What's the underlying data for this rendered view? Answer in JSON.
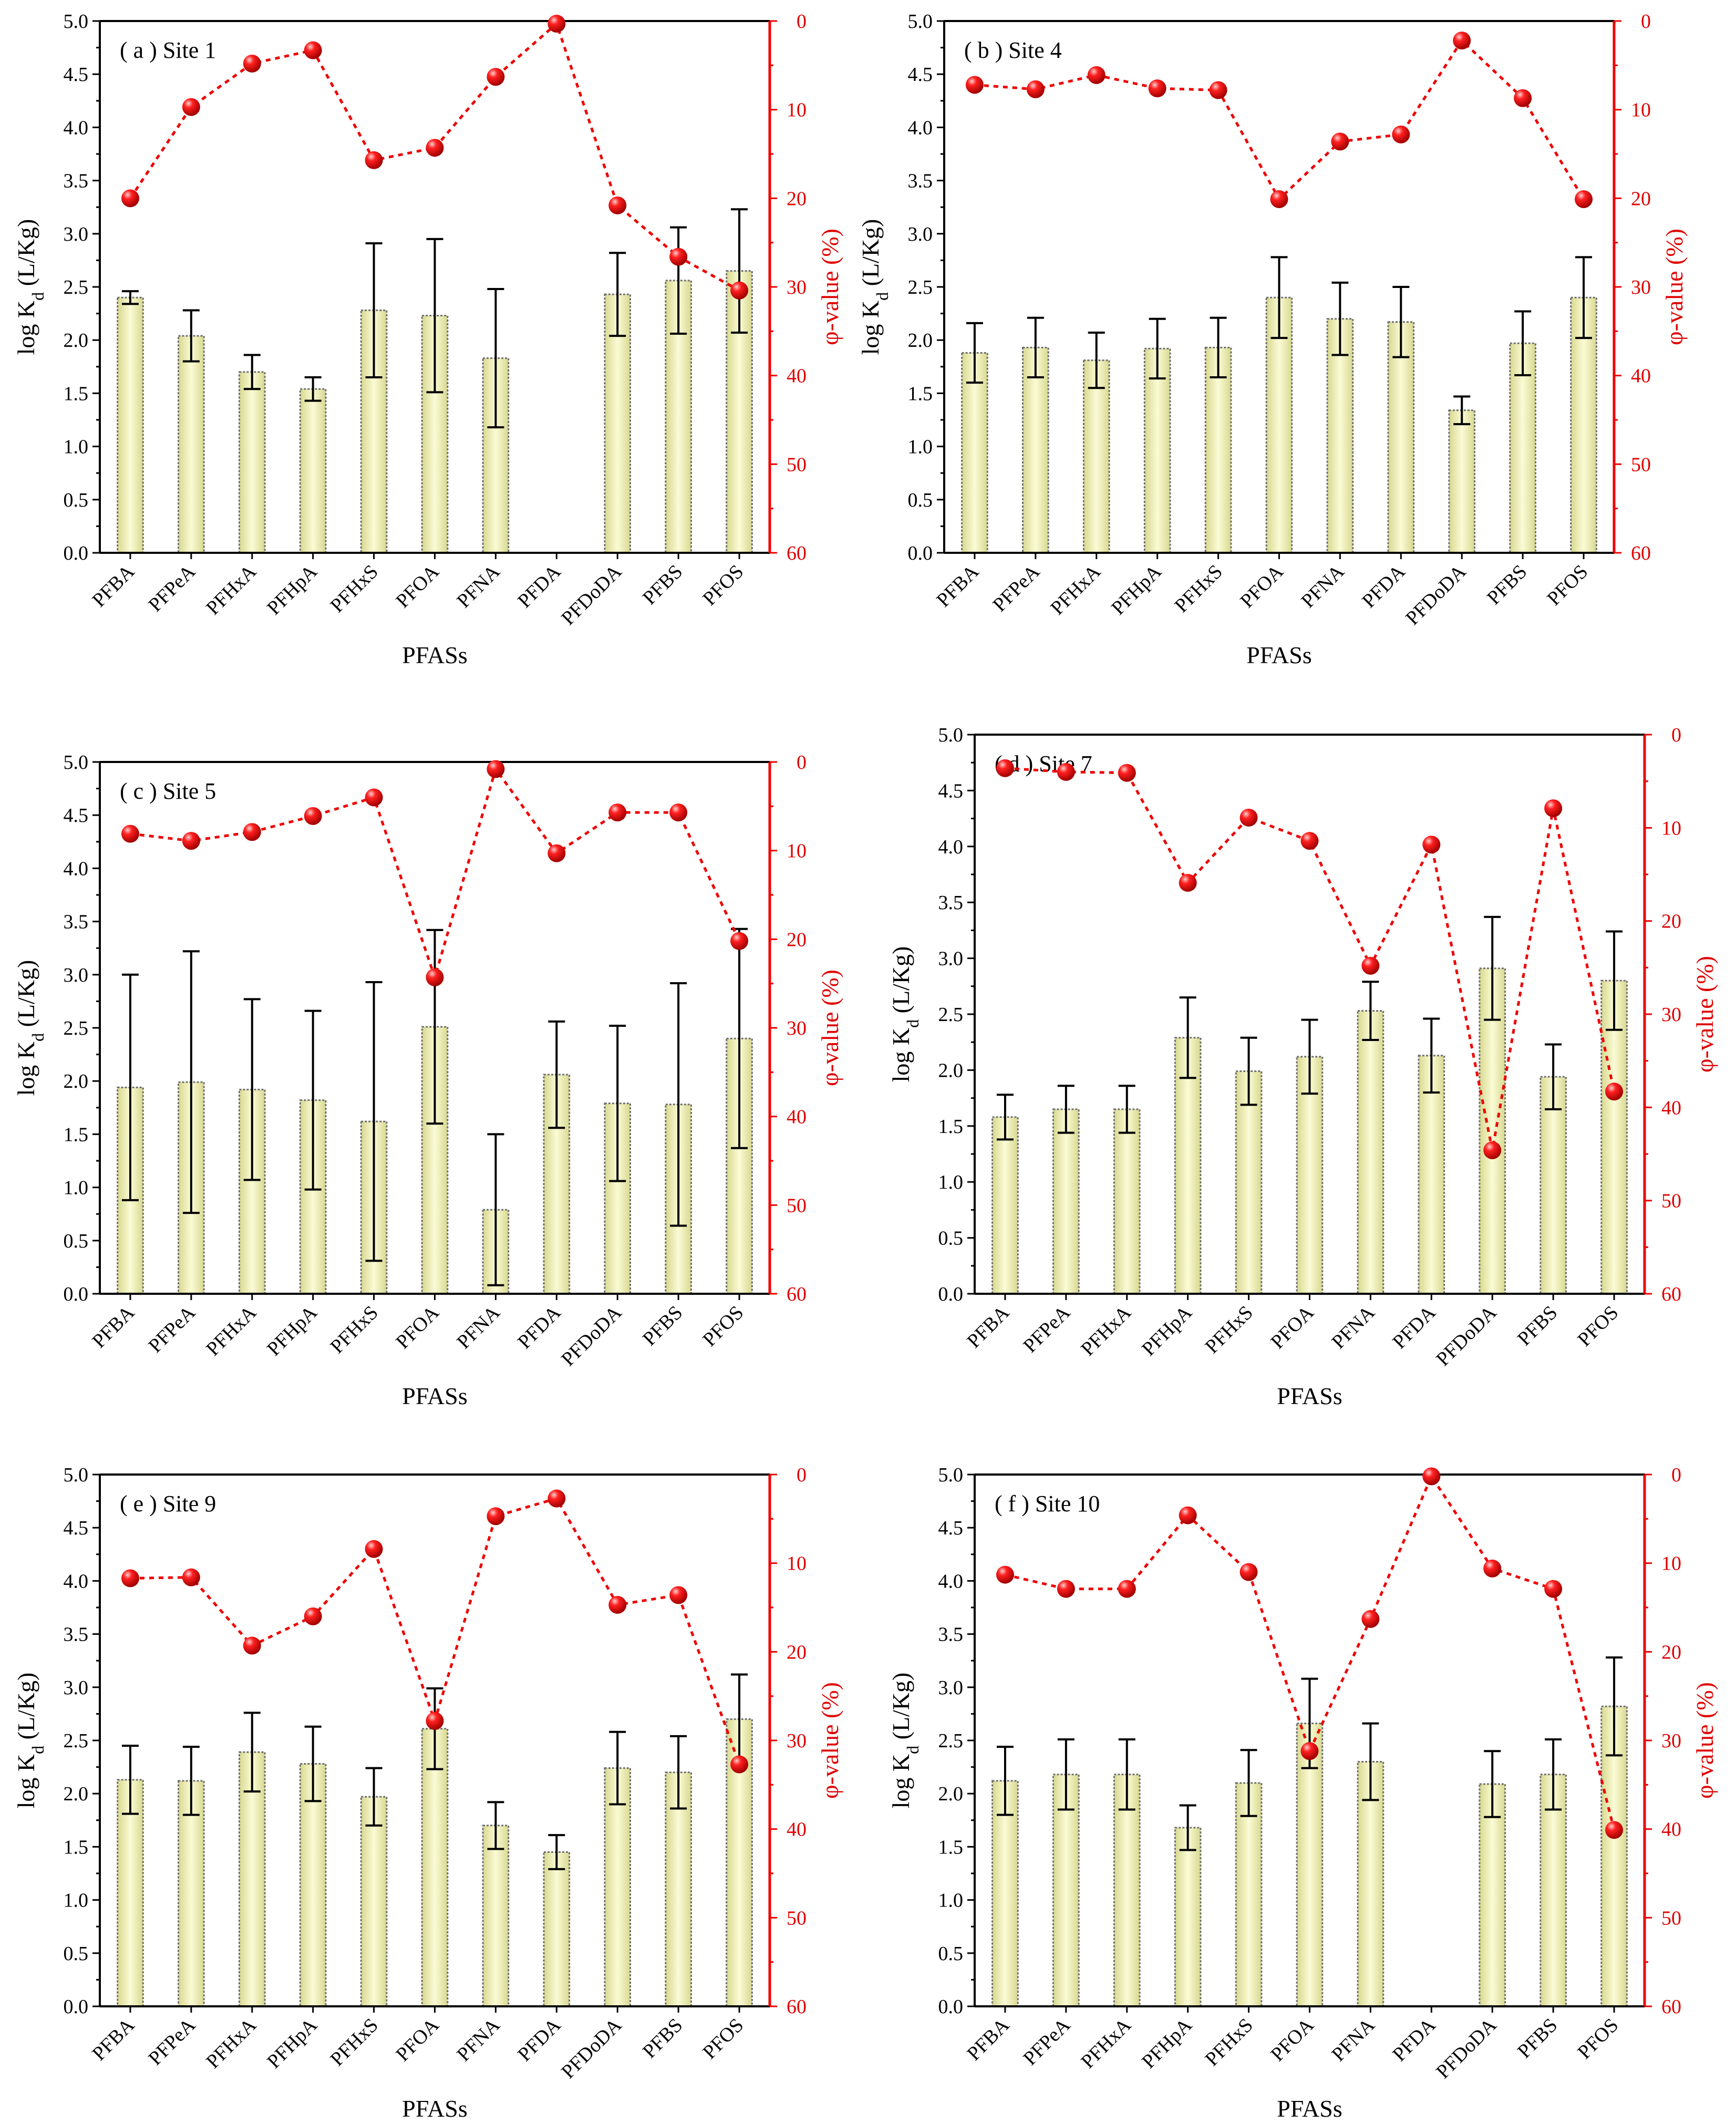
{
  "colors": {
    "bar_fill": "#f2f2a6",
    "bar_edge": "#6e6e6e",
    "axis": "#000000",
    "phi": "#ee0000"
  },
  "chart_data": [
    {
      "type": "bar",
      "title": "( a ) Site 1",
      "categories": [
        "PFBA",
        "PFPeA",
        "PFHxA",
        "PFHpA",
        "PFHxS",
        "PFOA",
        "PFNA",
        "PFDA",
        "PFDoDA",
        "PFBS",
        "PFOS"
      ],
      "xlabel": "PFASs",
      "ylabel": "log K_d (L/Kg)",
      "y2label": "φ-value (%)",
      "ylim": [
        0,
        5
      ],
      "y2lim": [
        60,
        0
      ],
      "yticks": [
        "0.0",
        "0.5",
        "1.0",
        "1.5",
        "2.0",
        "2.5",
        "3.0",
        "3.5",
        "4.0",
        "4.5",
        "5.0"
      ],
      "y2ticks": [
        "0",
        "10",
        "20",
        "30",
        "40",
        "50",
        "60"
      ],
      "series": [
        {
          "name": "log Kd",
          "values": [
            2.4,
            2.04,
            1.7,
            1.54,
            2.28,
            2.23,
            1.83,
            null,
            2.43,
            2.56,
            2.65
          ],
          "errors": [
            0.06,
            0.24,
            0.16,
            0.11,
            0.63,
            0.72,
            0.65,
            null,
            0.39,
            0.5,
            0.58
          ]
        },
        {
          "name": "φ-value",
          "values": [
            20,
            9.7,
            4.8,
            3.3,
            15.7,
            14.3,
            6.3,
            0.3,
            20.8,
            26.6,
            30.4
          ]
        }
      ]
    },
    {
      "type": "bar",
      "title": "( b ) Site 4",
      "categories": [
        "PFBA",
        "PFPeA",
        "PFHxA",
        "PFHpA",
        "PFHxS",
        "PFOA",
        "PFNA",
        "PFDA",
        "PFDoDA",
        "PFBS",
        "PFOS"
      ],
      "xlabel": "PFASs",
      "ylabel": "log K_d (L/Kg)",
      "y2label": "φ-value (%)",
      "ylim": [
        0,
        5
      ],
      "y2lim": [
        60,
        0
      ],
      "yticks": [
        "0.0",
        "0.5",
        "1.0",
        "1.5",
        "2.0",
        "2.5",
        "3.0",
        "3.5",
        "4.0",
        "4.5",
        "5.0"
      ],
      "y2ticks": [
        "0",
        "10",
        "20",
        "30",
        "40",
        "50",
        "60"
      ],
      "series": [
        {
          "name": "log Kd",
          "values": [
            1.88,
            1.93,
            1.81,
            1.92,
            1.93,
            2.4,
            2.2,
            2.17,
            1.34,
            1.97,
            2.4
          ],
          "errors": [
            0.28,
            0.28,
            0.26,
            0.28,
            0.28,
            0.38,
            0.34,
            0.33,
            0.13,
            0.3,
            0.38
          ]
        },
        {
          "name": "φ-value",
          "values": [
            7.2,
            7.7,
            6.1,
            7.6,
            7.8,
            20.1,
            13.6,
            12.8,
            2.2,
            8.7,
            20.1
          ]
        }
      ]
    },
    {
      "type": "bar",
      "title": "( c ) Site 5",
      "categories": [
        "PFBA",
        "PFPeA",
        "PFHxA",
        "PFHpA",
        "PFHxS",
        "PFOA",
        "PFNA",
        "PFDA",
        "PFDoDA",
        "PFBS",
        "PFOS"
      ],
      "xlabel": "PFASs",
      "ylabel": "log K_d (L/Kg)",
      "y2label": "φ-value (%)",
      "ylim": [
        0,
        5
      ],
      "y2lim": [
        60,
        0
      ],
      "yticks": [
        "0.0",
        "0.5",
        "1.0",
        "1.5",
        "2.0",
        "2.5",
        "3.0",
        "3.5",
        "4.0",
        "4.5",
        "5.0"
      ],
      "y2ticks": [
        "0",
        "10",
        "20",
        "30",
        "40",
        "50",
        "60"
      ],
      "series": [
        {
          "name": "log Kd",
          "values": [
            1.94,
            1.99,
            1.92,
            1.82,
            1.62,
            2.51,
            0.79,
            2.06,
            1.79,
            1.78,
            2.4
          ],
          "errors": [
            1.06,
            1.23,
            0.85,
            0.84,
            1.31,
            0.91,
            0.71,
            0.5,
            0.73,
            1.14,
            1.03
          ]
        },
        {
          "name": "φ-value",
          "values": [
            8.1,
            8.9,
            7.9,
            6.1,
            4.0,
            24.3,
            0.8,
            10.3,
            5.7,
            5.7,
            20.2
          ]
        }
      ]
    },
    {
      "type": "bar",
      "title": "( d ) Site 7",
      "categories": [
        "PFBA",
        "PFPeA",
        "PFHxA",
        "PFHpA",
        "PFHxS",
        "PFOA",
        "PFNA",
        "PFDA",
        "PFDoDA",
        "PFBS",
        "PFOS"
      ],
      "xlabel": "PFASs",
      "ylabel": "log K_d (L/Kg)",
      "y2label": "φ-value (%)",
      "ylim": [
        0,
        5
      ],
      "y2lim": [
        60,
        0
      ],
      "yticks": [
        "0.0",
        "0.5",
        "1.0",
        "1.5",
        "2.0",
        "2.5",
        "3.0",
        "3.5",
        "4.0",
        "4.5",
        "5.0"
      ],
      "y2ticks": [
        "0",
        "10",
        "20",
        "30",
        "40",
        "50",
        "60"
      ],
      "series": [
        {
          "name": "log Kd",
          "values": [
            1.58,
            1.65,
            1.65,
            2.29,
            1.99,
            2.12,
            2.53,
            2.13,
            2.91,
            1.94,
            2.8
          ],
          "errors": [
            0.2,
            0.21,
            0.21,
            0.36,
            0.3,
            0.33,
            0.26,
            0.33,
            0.46,
            0.29,
            0.44
          ]
        },
        {
          "name": "φ-value",
          "values": [
            3.6,
            4.0,
            4.1,
            15.9,
            8.9,
            11.4,
            24.8,
            11.8,
            44.6,
            7.9,
            38.3
          ]
        }
      ]
    },
    {
      "type": "bar",
      "title": "( e ) Site 9",
      "categories": [
        "PFBA",
        "PFPeA",
        "PFHxA",
        "PFHpA",
        "PFHxS",
        "PFOA",
        "PFNA",
        "PFDA",
        "PFDoDA",
        "PFBS",
        "PFOS"
      ],
      "xlabel": "PFASs",
      "ylabel": "log K_d (L/Kg)",
      "y2label": "φ-value (%)",
      "ylim": [
        0,
        5
      ],
      "y2lim": [
        60,
        0
      ],
      "yticks": [
        "0.0",
        "0.5",
        "1.0",
        "1.5",
        "2.0",
        "2.5",
        "3.0",
        "3.5",
        "4.0",
        "4.5",
        "5.0"
      ],
      "y2ticks": [
        "0",
        "10",
        "20",
        "30",
        "40",
        "50",
        "60"
      ],
      "series": [
        {
          "name": "log Kd",
          "values": [
            2.13,
            2.12,
            2.39,
            2.28,
            1.97,
            2.61,
            1.7,
            1.45,
            2.24,
            2.2,
            2.7
          ],
          "errors": [
            0.32,
            0.32,
            0.37,
            0.35,
            0.27,
            0.38,
            0.22,
            0.16,
            0.34,
            0.34,
            0.42
          ]
        },
        {
          "name": "φ-value",
          "values": [
            11.7,
            11.6,
            19.3,
            16.0,
            8.4,
            27.8,
            4.7,
            2.7,
            14.7,
            13.6,
            32.7
          ]
        }
      ]
    },
    {
      "type": "bar",
      "title": "( f ) Site 10",
      "categories": [
        "PFBA",
        "PFPeA",
        "PFHxA",
        "PFHpA",
        "PFHxS",
        "PFOA",
        "PFNA",
        "PFDA",
        "PFDoDA",
        "PFBS",
        "PFOS"
      ],
      "xlabel": "PFASs",
      "ylabel": "log K_d (L/Kg)",
      "y2label": "φ-value (%)",
      "ylim": [
        0,
        5
      ],
      "y2lim": [
        60,
        0
      ],
      "yticks": [
        "0.0",
        "0.5",
        "1.0",
        "1.5",
        "2.0",
        "2.5",
        "3.0",
        "3.5",
        "4.0",
        "4.5",
        "5.0"
      ],
      "y2ticks": [
        "0",
        "10",
        "20",
        "30",
        "40",
        "50",
        "60"
      ],
      "series": [
        {
          "name": "log Kd",
          "values": [
            2.12,
            2.18,
            2.18,
            1.68,
            2.1,
            2.66,
            2.3,
            null,
            2.09,
            2.18,
            2.82
          ],
          "errors": [
            0.32,
            0.33,
            0.33,
            0.21,
            0.31,
            0.42,
            0.36,
            null,
            0.31,
            0.33,
            0.46
          ]
        },
        {
          "name": "φ-value",
          "values": [
            11.3,
            12.9,
            12.9,
            4.6,
            11.0,
            31.2,
            16.3,
            0.2,
            10.6,
            12.9,
            40.1
          ]
        }
      ]
    }
  ]
}
